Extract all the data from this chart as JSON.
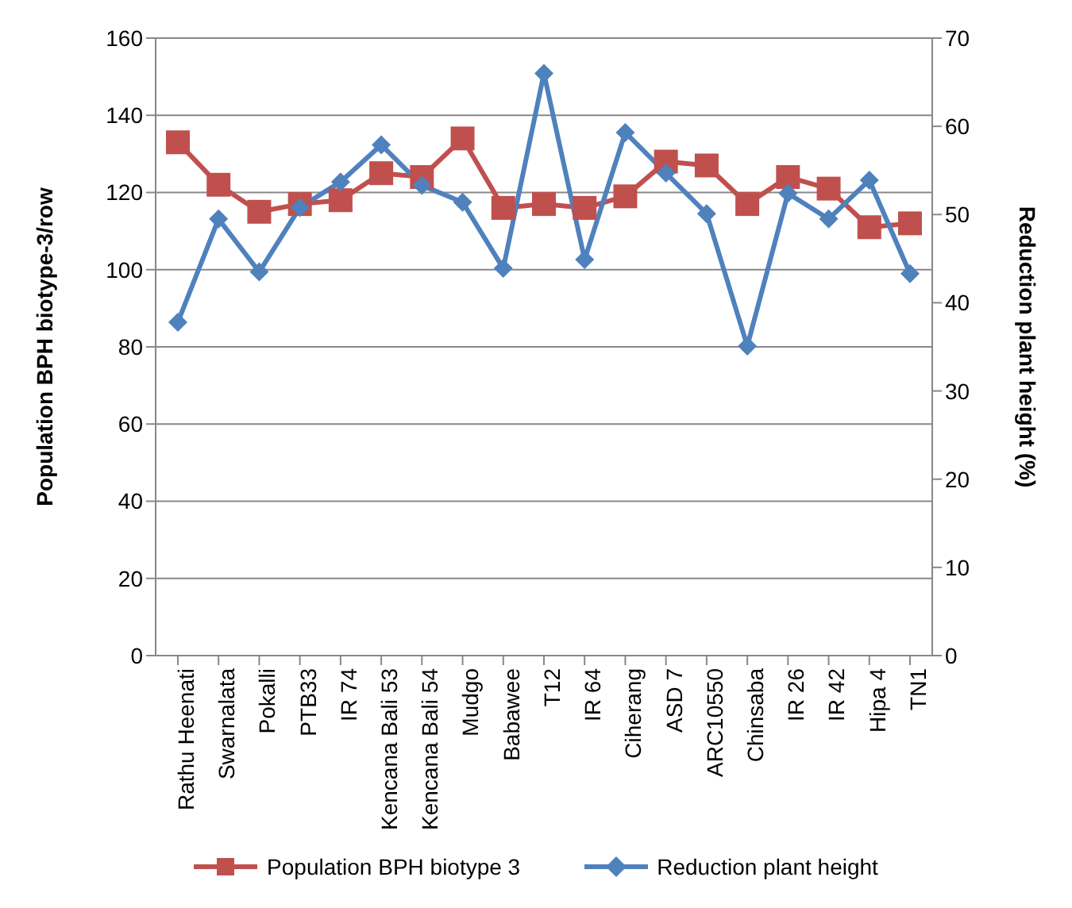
{
  "chart_data": {
    "type": "line",
    "categories": [
      "Rathu Heenati",
      "Swarnalata",
      "Pokalli",
      "PTB33",
      "IR 74",
      "Kencana Bali 53",
      "Kencana Bali 54",
      "Mudgo",
      "Babawee",
      "T12",
      "IR 64",
      "Ciherang",
      "ASD 7",
      "ARC10550",
      "Chinsaba",
      "IR 26",
      "IR 42",
      "Hipa 4",
      "TN1"
    ],
    "series": [
      {
        "name": "Population BPH biotype 3",
        "color": "#c0504d",
        "marker": "square",
        "values": [
          133,
          122,
          115,
          117,
          118,
          125,
          124,
          134,
          116,
          117,
          116,
          119,
          128,
          127,
          117,
          124,
          121,
          111,
          112
        ]
      },
      {
        "name": "Reduction plant height",
        "color": "#4f81bd",
        "marker": "diamond",
        "axis": "y2",
        "values": [
          37.8,
          49.5,
          43.5,
          50.8,
          53.7,
          57.9,
          53.3,
          51.4,
          43.9,
          66,
          44.9,
          59.3,
          54.7,
          50.1,
          35.1,
          52.4,
          49.5,
          53.9,
          43.3
        ]
      }
    ],
    "ylabel": "Population BPH biotype-3/row",
    "y2label": "Reduction plant height (%)",
    "ylim": [
      0,
      160
    ],
    "yticks": [
      0,
      20,
      40,
      60,
      80,
      100,
      120,
      140,
      160
    ],
    "y2lim": [
      0,
      70
    ],
    "y2ticks": [
      0,
      10,
      20,
      30,
      40,
      50,
      60,
      70
    ],
    "grid": "y",
    "legend": "bottom",
    "line_style": "solid"
  }
}
